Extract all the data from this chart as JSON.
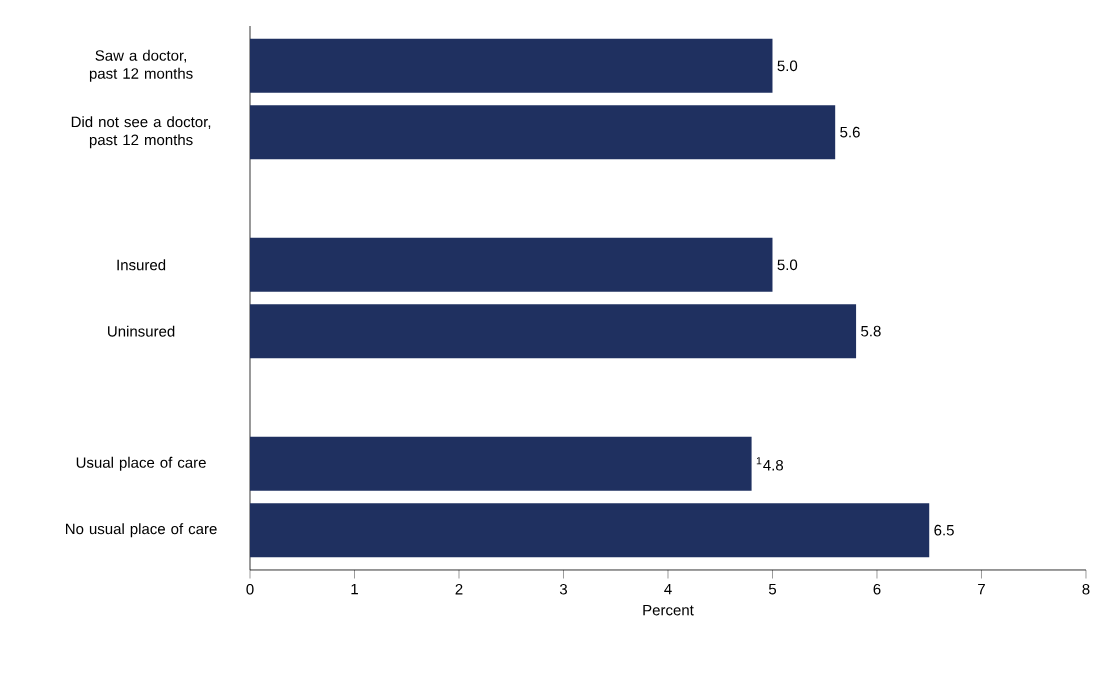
{
  "chart_data": {
    "type": "bar",
    "orientation": "horizontal",
    "xlabel": "Percent",
    "categories": [
      "Saw a doctor, past 12 months",
      "Did not see a doctor, past 12 months",
      null,
      "Insured",
      "Uninsured",
      null,
      "Usual place of care",
      "No usual place of care"
    ],
    "values": [
      5.0,
      5.6,
      null,
      5.0,
      5.8,
      null,
      4.8,
      6.5
    ],
    "value_labels": [
      "5.0",
      "5.6",
      null,
      "5.0",
      "5.8",
      null,
      "$^{1}$4.8",
      "6.5"
    ],
    "color": "#1f3060",
    "xlim": [
      0,
      8
    ],
    "xticks": [
      0,
      1,
      2,
      3,
      4,
      5,
      6,
      7,
      8
    ],
    "grid": false
  }
}
